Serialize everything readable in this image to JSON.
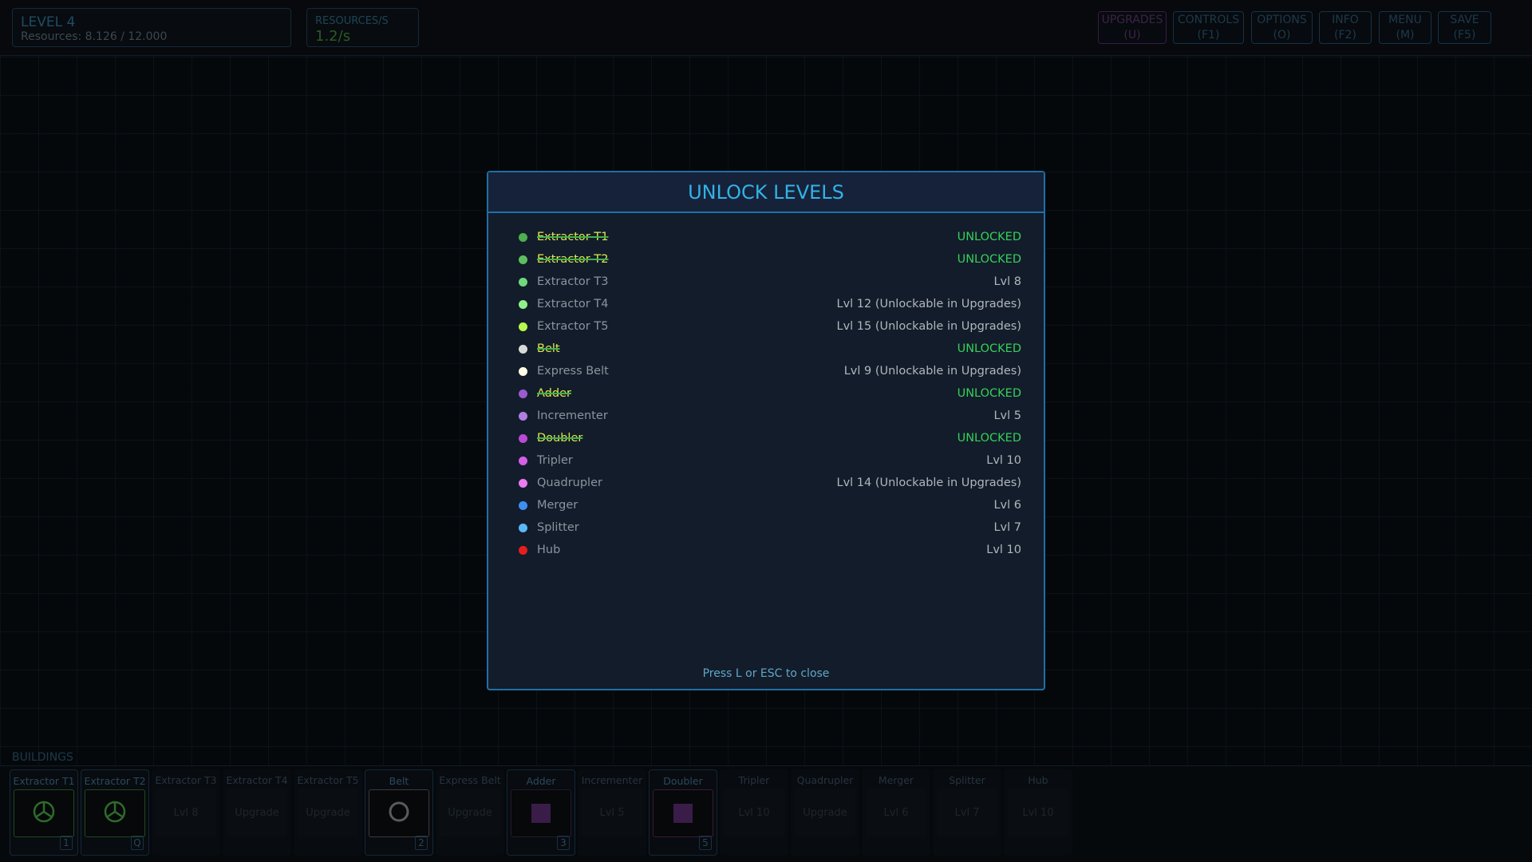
{
  "hud": {
    "level": "LEVEL 4",
    "resources": "Resources: 8.126 / 12.000",
    "rate_label": "RESOURCES/S",
    "rate": "1.2/s"
  },
  "buttons": [
    {
      "label": "UPGRADES",
      "key": "(U)"
    },
    {
      "label": "CONTROLS",
      "key": "(F1)"
    },
    {
      "label": "OPTIONS",
      "key": "(O)"
    },
    {
      "label": "INFO",
      "key": "(F2)"
    },
    {
      "label": "MENU",
      "key": "(M)"
    },
    {
      "label": "SAVE",
      "key": "(F5)"
    }
  ],
  "modal": {
    "title": "UNLOCK LEVELS",
    "footer": "Press L or ESC to close",
    "items": [
      {
        "name": "Extractor T1",
        "status": "UNLOCKED",
        "unlocked": true,
        "color": "#4caf50"
      },
      {
        "name": "Extractor T2",
        "status": "UNLOCKED",
        "unlocked": true,
        "color": "#5cc05e"
      },
      {
        "name": "Extractor T3",
        "status": "Lvl 8",
        "unlocked": false,
        "color": "#6fd87a"
      },
      {
        "name": "Extractor T4",
        "status": "Lvl 12 (Unlockable in Upgrades)",
        "unlocked": false,
        "color": "#8ef08a"
      },
      {
        "name": "Extractor T5",
        "status": "Lvl 15 (Unlockable in Upgrades)",
        "unlocked": false,
        "color": "#b6f84e"
      },
      {
        "name": "Belt",
        "status": "UNLOCKED",
        "unlocked": true,
        "color": "#d8d8d8"
      },
      {
        "name": "Express Belt",
        "status": "Lvl 9 (Unlockable in Upgrades)",
        "unlocked": false,
        "color": "#fffbe6"
      },
      {
        "name": "Adder",
        "status": "UNLOCKED",
        "unlocked": true,
        "color": "#9a5ad0"
      },
      {
        "name": "Incrementer",
        "status": "Lvl 5",
        "unlocked": false,
        "color": "#b07ee0"
      },
      {
        "name": "Doubler",
        "status": "UNLOCKED",
        "unlocked": true,
        "color": "#b84ad6"
      },
      {
        "name": "Tripler",
        "status": "Lvl 10",
        "unlocked": false,
        "color": "#d65ee8"
      },
      {
        "name": "Quadrupler",
        "status": "Lvl 14 (Unlockable in Upgrades)",
        "unlocked": false,
        "color": "#e87cf0"
      },
      {
        "name": "Merger",
        "status": "Lvl 6",
        "unlocked": false,
        "color": "#3d8ef0"
      },
      {
        "name": "Splitter",
        "status": "Lvl 7",
        "unlocked": false,
        "color": "#5ab8f8"
      },
      {
        "name": "Hub",
        "status": "Lvl 10",
        "unlocked": false,
        "color": "#e41e1e"
      }
    ]
  },
  "buildings": {
    "label": "BUILDINGS",
    "cards": [
      {
        "name": "Extractor T1",
        "key": "1",
        "icon": "extractor"
      },
      {
        "name": "Extractor T2",
        "key": "Q",
        "icon": "extractor"
      },
      {
        "name": "Extractor T3",
        "locked": "Lvl 8"
      },
      {
        "name": "Extractor T4",
        "locked": "Upgrade"
      },
      {
        "name": "Extractor T5",
        "locked": "Upgrade"
      },
      {
        "name": "Belt",
        "key": "2",
        "icon": "belt"
      },
      {
        "name": "Express Belt",
        "locked": "Upgrade"
      },
      {
        "name": "Adder",
        "key": "3",
        "icon": "square"
      },
      {
        "name": "Incrementer",
        "locked": "Lvl 5"
      },
      {
        "name": "Doubler",
        "key": "5",
        "icon": "square"
      },
      {
        "name": "Tripler",
        "locked": "Lvl 10"
      },
      {
        "name": "Quadrupler",
        "locked": "Upgrade"
      },
      {
        "name": "Merger",
        "locked": "Lvl 6"
      },
      {
        "name": "Splitter",
        "locked": "Lvl 7"
      },
      {
        "name": "Hub",
        "locked": "Lvl 10"
      }
    ]
  }
}
